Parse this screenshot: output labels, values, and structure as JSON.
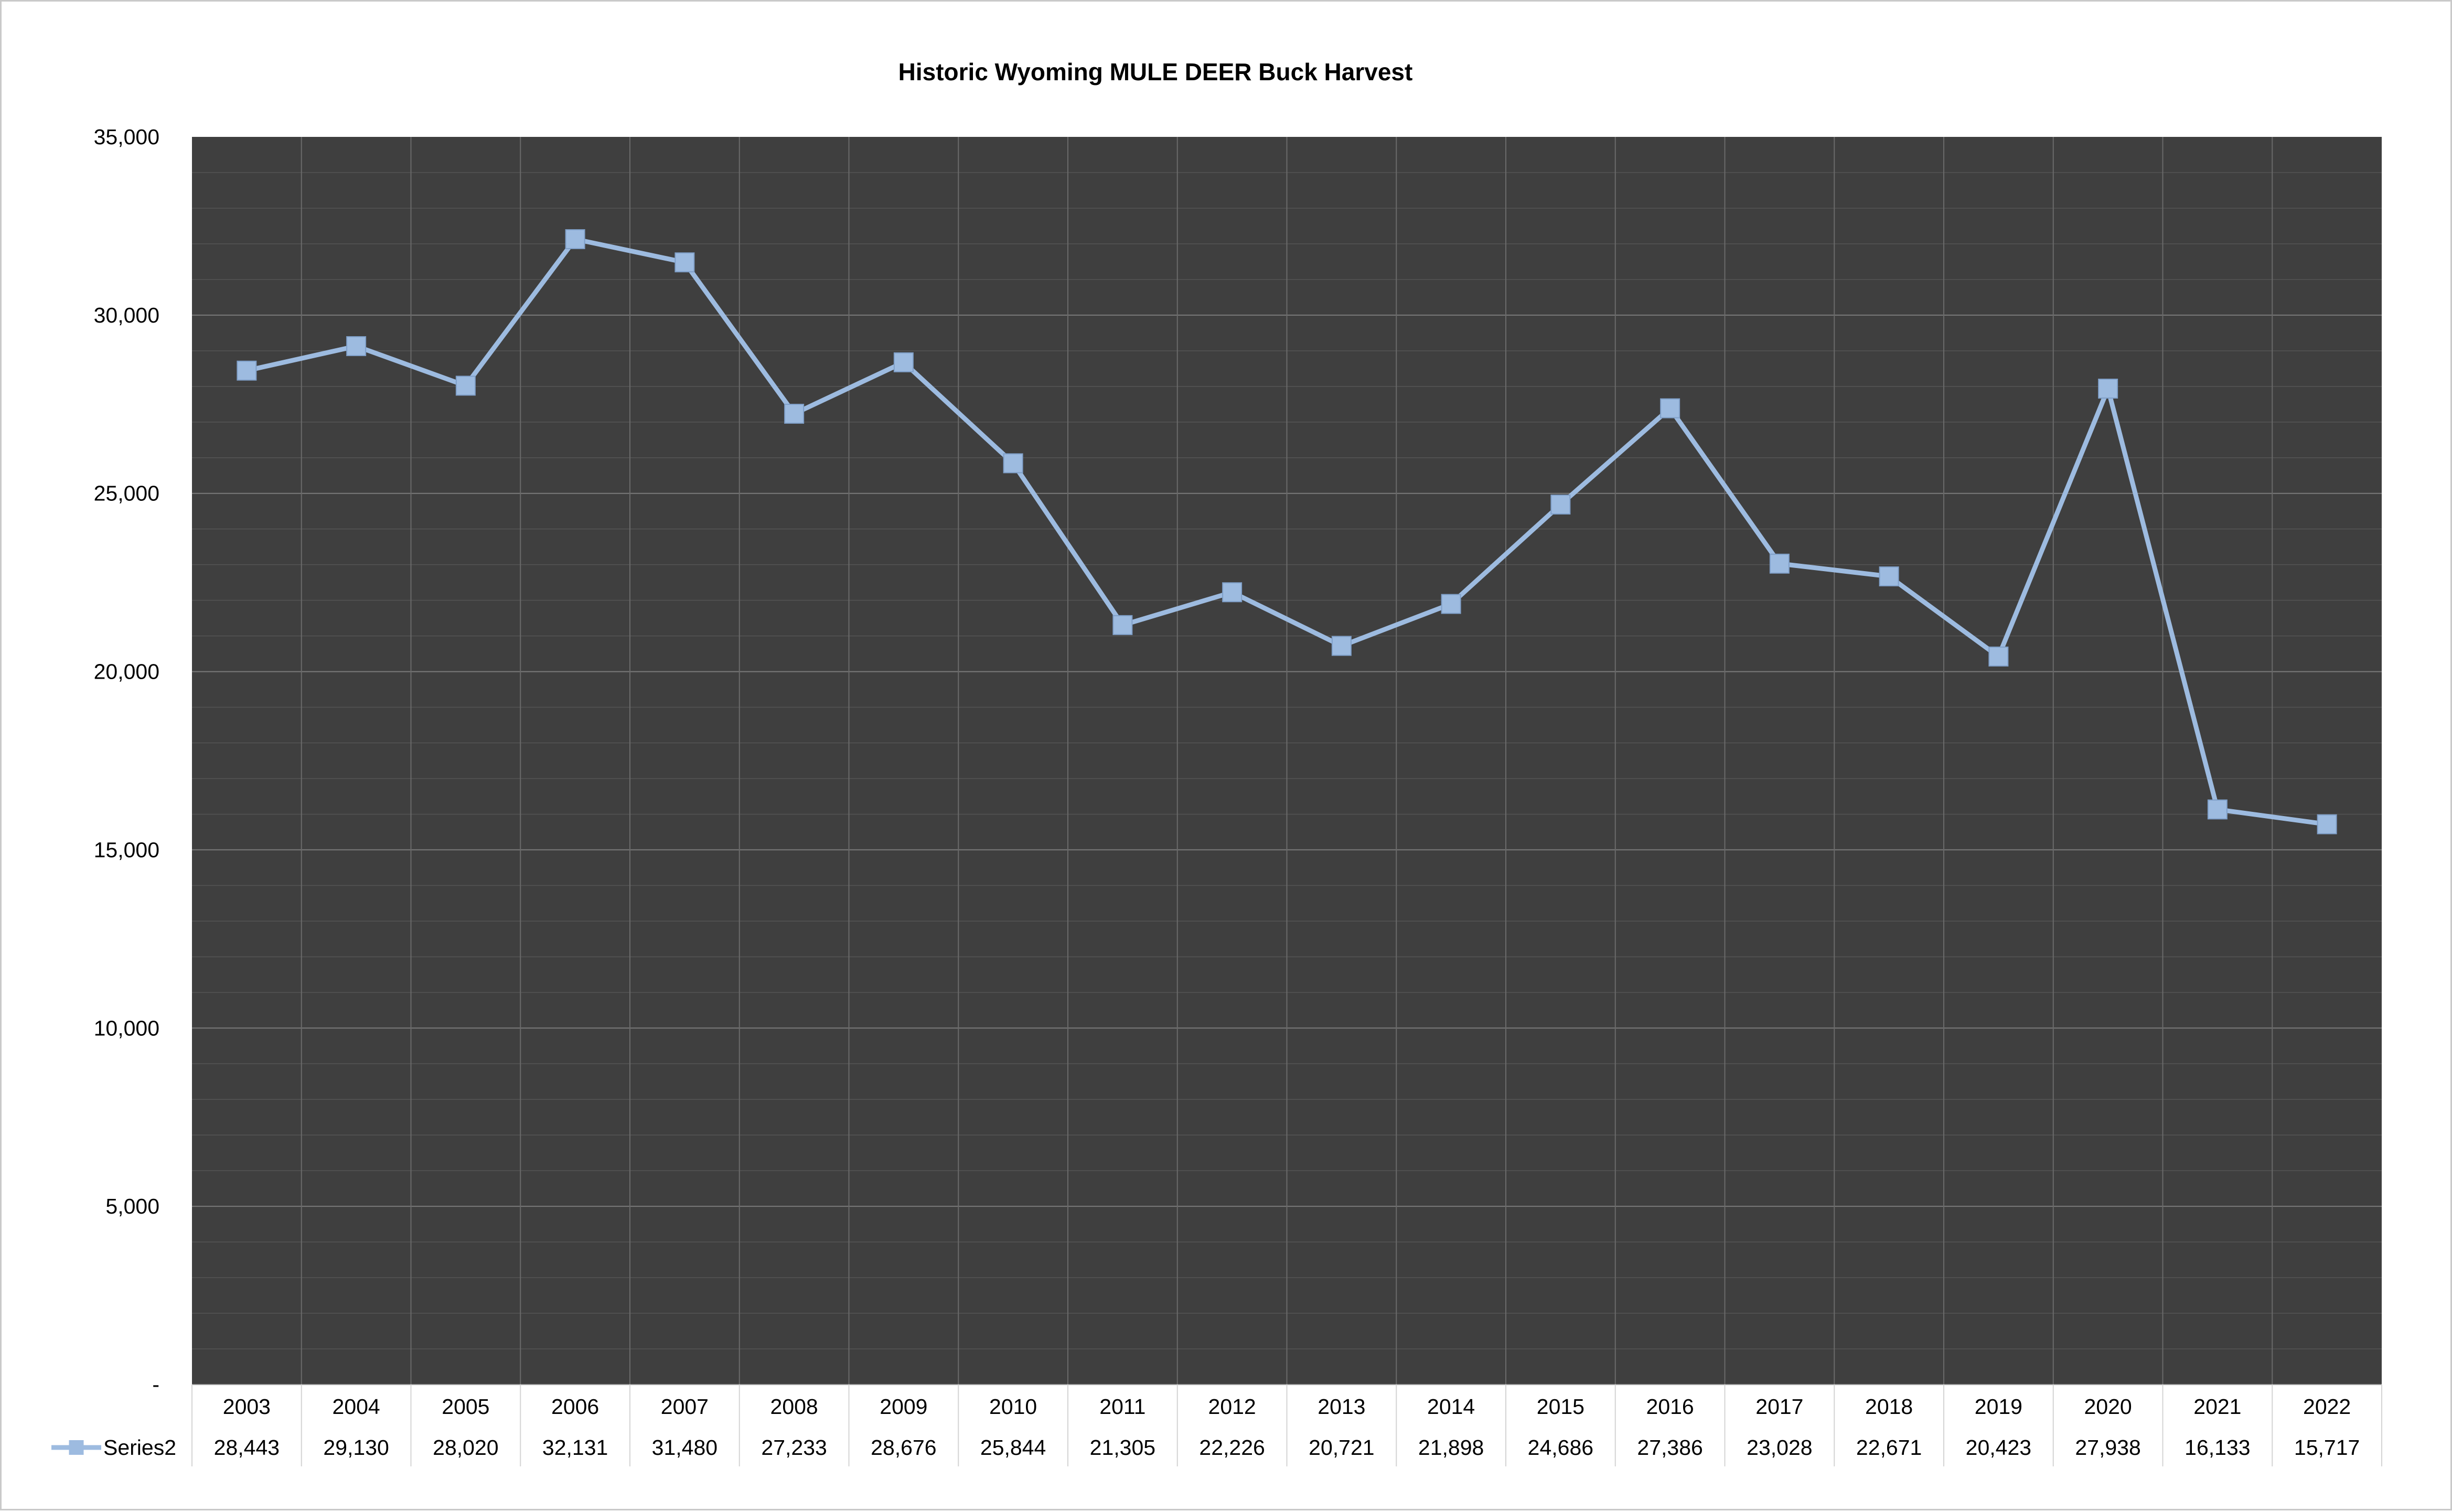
{
  "chart_data": {
    "type": "line",
    "title": "Historic Wyoming MULE DEER Buck Harvest",
    "xlabel": "",
    "ylabel": "",
    "categories": [
      "2003",
      "2004",
      "2005",
      "2006",
      "2007",
      "2008",
      "2009",
      "2010",
      "2011",
      "2012",
      "2013",
      "2014",
      "2015",
      "2016",
      "2017",
      "2018",
      "2019",
      "2020",
      "2021",
      "2022"
    ],
    "series": [
      {
        "name": "Series2",
        "values": [
          28443,
          29130,
          28020,
          32131,
          31480,
          27233,
          28676,
          25844,
          21305,
          22226,
          20721,
          21898,
          24686,
          27386,
          23028,
          22671,
          20423,
          27938,
          16133,
          15717
        ],
        "value_labels": [
          "28,443",
          "29,130",
          "28,020",
          "32,131",
          "31,480",
          "27,233",
          "28,676",
          "25,844",
          "21,305",
          "22,226",
          "20,721",
          "21,898",
          "24,686",
          "27,386",
          "23,028",
          "22,671",
          "20,423",
          "27,938",
          "16,133",
          "15,717"
        ],
        "color": "#9dbbe0",
        "marker": "square"
      }
    ],
    "ylim": [
      0,
      35000
    ],
    "ytick_values": [
      0,
      5000,
      10000,
      15000,
      20000,
      25000,
      30000,
      35000
    ],
    "ytick_labels": [
      "-",
      "5,000",
      "10,000",
      "15,000",
      "20,000",
      "25,000",
      "30,000",
      "35,000"
    ],
    "grid": true,
    "plot_background": "#3f3f3f",
    "gridline_color": "#6a6a6a",
    "data_table": true,
    "legend_position": "data-table-left"
  }
}
